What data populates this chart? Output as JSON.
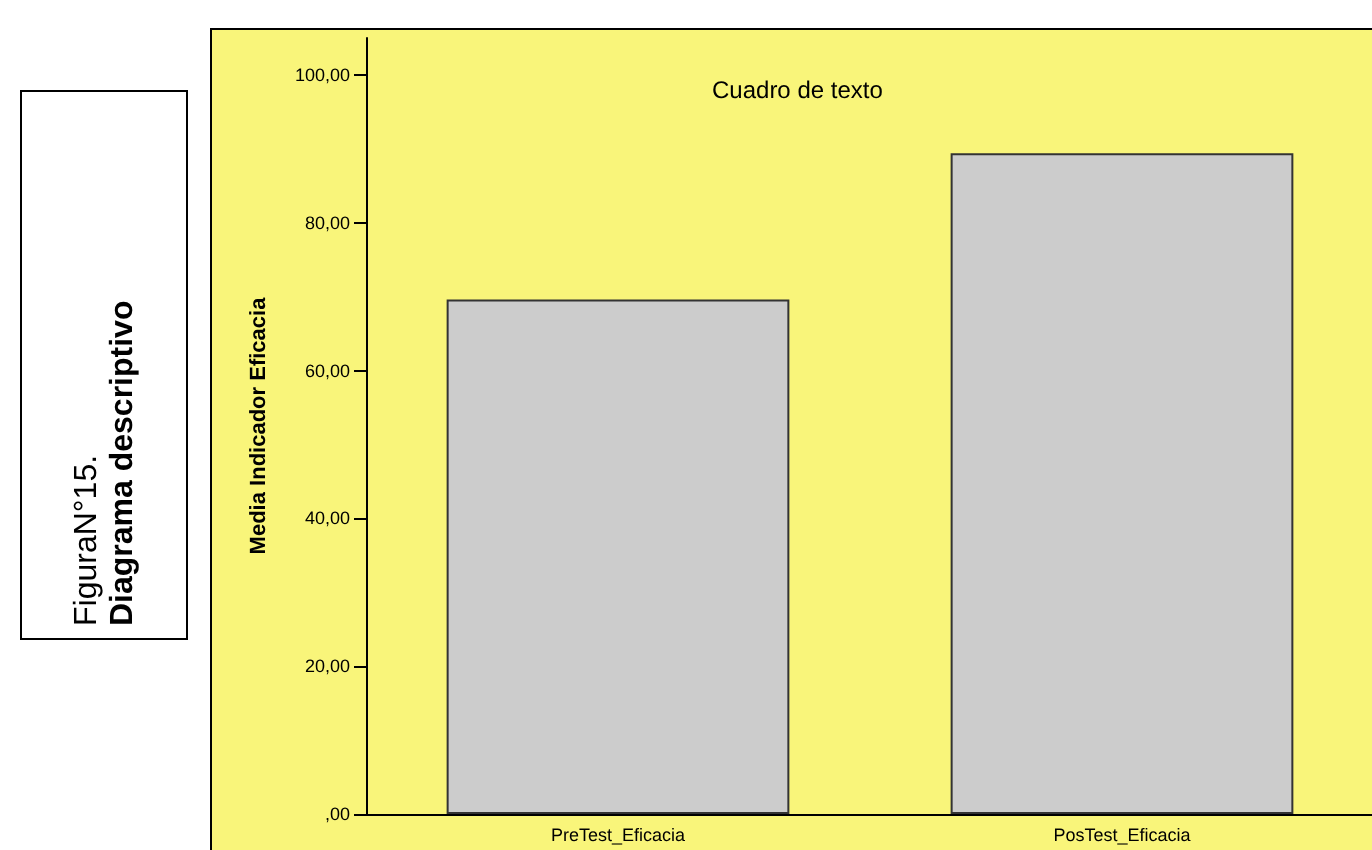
{
  "chart_data": {
    "type": "bar",
    "title": "FiguraN°15.",
    "subtitle": "Diagrama descriptivo",
    "ylabel": "Media Indicador Eficacia",
    "annotations": [
      "Cuadro de texto"
    ],
    "categories": [
      "PreTest_Eficacia",
      "PosTest_Eficacia"
    ],
    "values": [
      69.6,
      89.4
    ],
    "color": "#cccccc",
    "ylim": [
      0,
      105
    ],
    "yticks": [
      {
        "value": 0,
        "label": ",00"
      },
      {
        "value": 20,
        "label": "20,00"
      },
      {
        "value": 40,
        "label": "40,00"
      },
      {
        "value": 60,
        "label": "60,00"
      },
      {
        "value": 80,
        "label": "80,00"
      },
      {
        "value": 100,
        "label": "100,00"
      }
    ],
    "grid": false
  }
}
